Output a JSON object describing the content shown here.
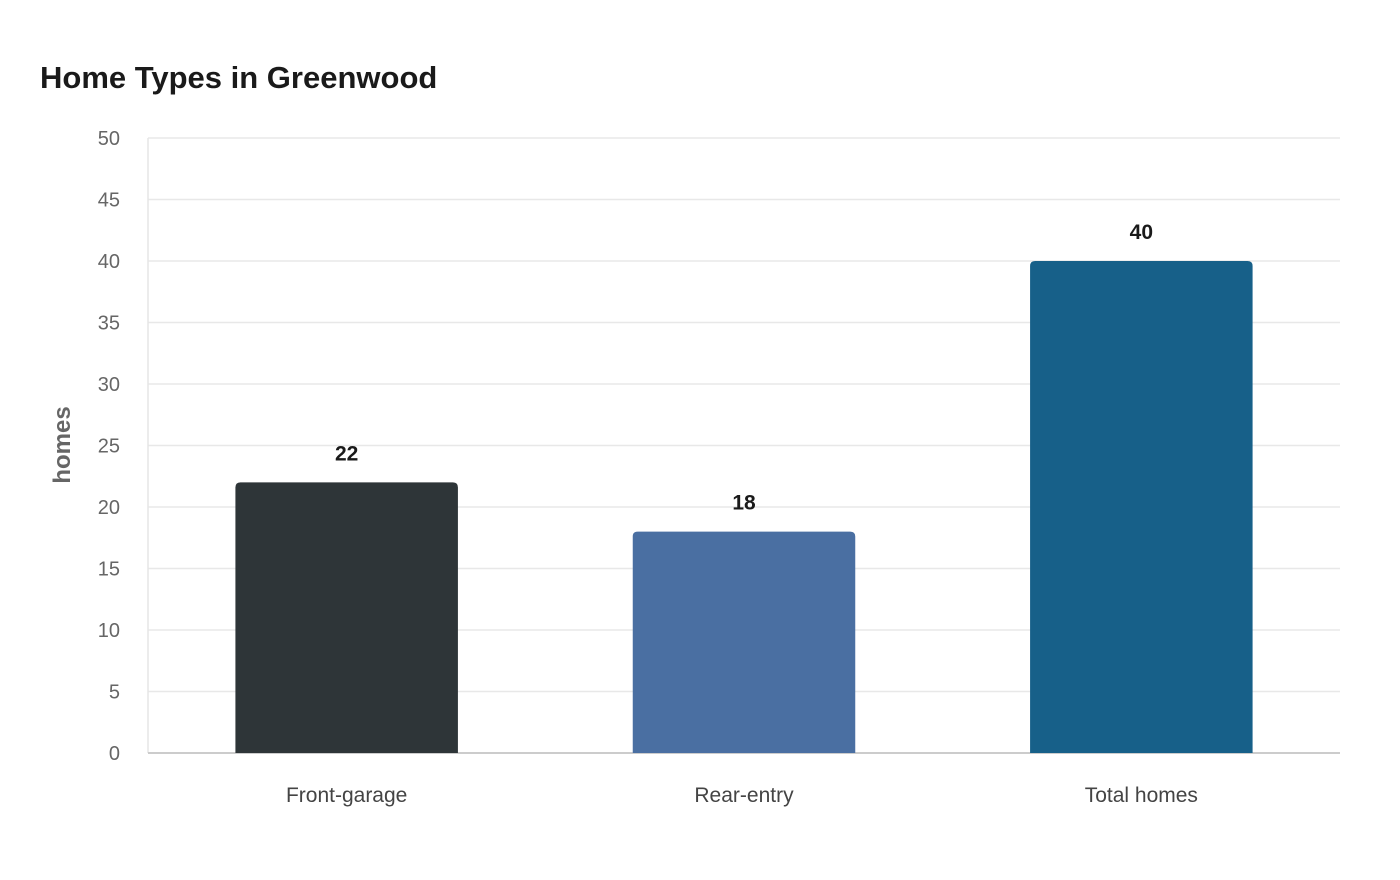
{
  "chart_data": {
    "type": "bar",
    "title": "Home Types in Greenwood",
    "xlabel": "",
    "ylabel": "homes",
    "categories": [
      "Front-garage",
      "Rear-entry",
      "Total homes"
    ],
    "values": [
      22,
      18,
      40
    ],
    "data_labels": [
      "22",
      "18",
      "40"
    ],
    "colors": [
      "#2e3538",
      "#4a6fa2",
      "#176089"
    ],
    "ylim": [
      0,
      50
    ],
    "yticks": [
      0,
      5,
      10,
      15,
      20,
      25,
      30,
      35,
      40,
      45,
      50
    ],
    "grid": true,
    "legend": "none"
  }
}
